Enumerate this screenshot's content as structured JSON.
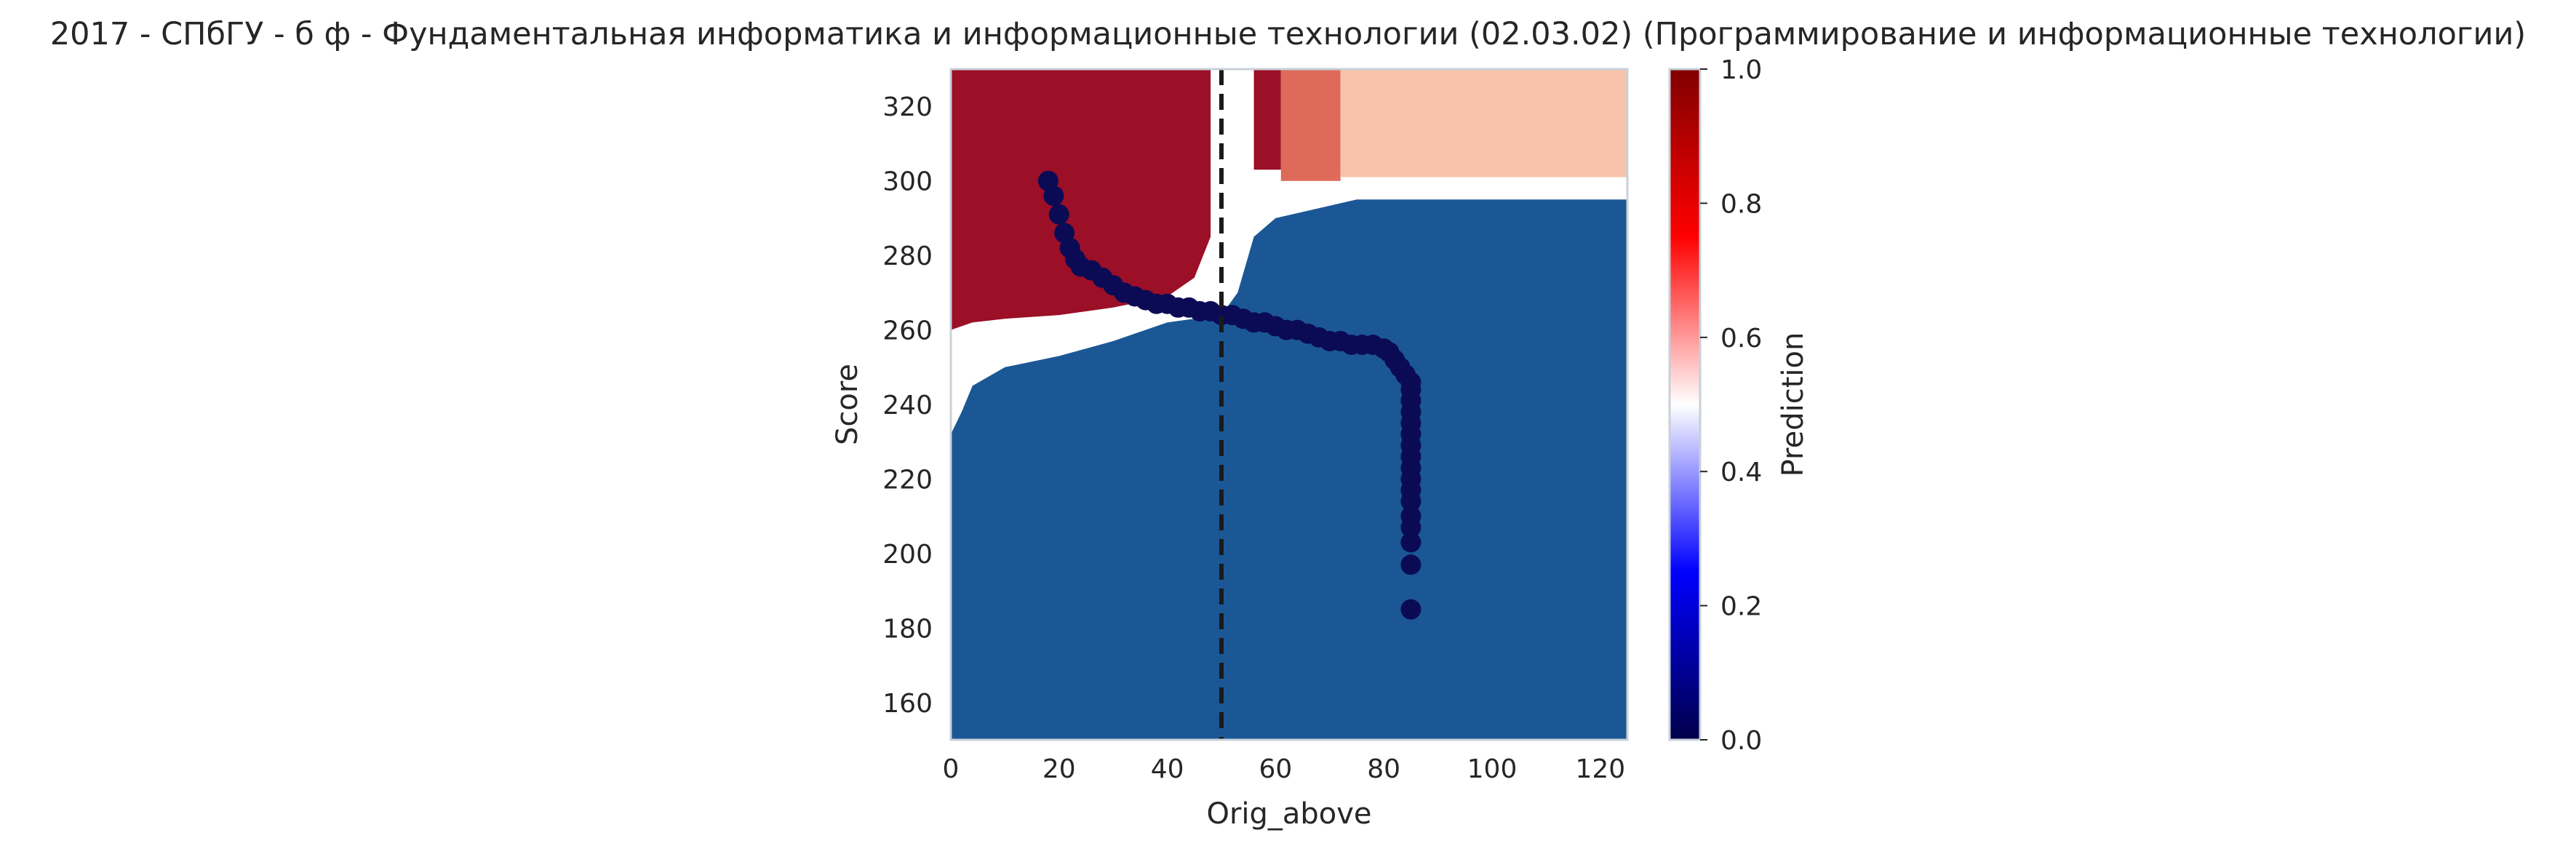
{
  "chart_data": {
    "type": "heatmap",
    "title": "2017 - СПбГУ - б ф - Фундаментальная информатика и информационные технологии (02.03.02) (Программирование и информационные технологии)",
    "xlabel": "Orig_above",
    "ylabel": "Score",
    "xlim": [
      0,
      125
    ],
    "ylim": [
      150,
      330
    ],
    "x_ticks": [
      0,
      20,
      40,
      60,
      80,
      100,
      120
    ],
    "y_ticks": [
      160,
      180,
      200,
      220,
      240,
      260,
      280,
      300,
      320
    ],
    "grid": false,
    "reference_line": {
      "x": 50,
      "style": "dashed",
      "color": "#1a1a1a"
    },
    "colorbar": {
      "label": "Prediction",
      "range": [
        0,
        1
      ],
      "ticks": [
        "0.0",
        "0.2",
        "0.4",
        "0.6",
        "0.8",
        "1.0"
      ],
      "colormap": "seismic"
    },
    "regions": [
      {
        "prediction": 0.05,
        "color": "#1b5795",
        "polygon": [
          [
            0,
            150
          ],
          [
            125,
            150
          ],
          [
            125,
            295
          ],
          [
            75,
            295
          ],
          [
            60,
            290
          ],
          [
            56,
            285
          ],
          [
            53,
            270
          ],
          [
            50,
            264
          ],
          [
            40,
            262
          ],
          [
            30,
            257
          ],
          [
            20,
            253
          ],
          [
            10,
            250
          ],
          [
            4,
            245
          ],
          [
            2,
            238
          ],
          [
            0,
            232
          ]
        ]
      },
      {
        "prediction": 0.98,
        "color": "#9b0f27",
        "polygon": [
          [
            0,
            330
          ],
          [
            48,
            330
          ],
          [
            48,
            285
          ],
          [
            45,
            274
          ],
          [
            40,
            269
          ],
          [
            30,
            266
          ],
          [
            20,
            264
          ],
          [
            10,
            263
          ],
          [
            4,
            262
          ],
          [
            0,
            260
          ]
        ]
      },
      {
        "prediction": 0.98,
        "color": "#9b0f27",
        "polygon": [
          [
            56,
            330
          ],
          [
            61,
            330
          ],
          [
            61,
            303
          ],
          [
            56,
            303
          ]
        ]
      },
      {
        "prediction": 0.75,
        "color": "#de6b5a",
        "polygon": [
          [
            61,
            330
          ],
          [
            72,
            330
          ],
          [
            72,
            300
          ],
          [
            61,
            300
          ]
        ]
      },
      {
        "prediction": 0.63,
        "color": "#f8c3aa",
        "polygon": [
          [
            72,
            330
          ],
          [
            125,
            330
          ],
          [
            125,
            301
          ],
          [
            72,
            301
          ]
        ]
      }
    ],
    "scatter": {
      "color": "#0b0b55",
      "points": [
        [
          18,
          300
        ],
        [
          19,
          296
        ],
        [
          20,
          291
        ],
        [
          21,
          286
        ],
        [
          22,
          282
        ],
        [
          23,
          279
        ],
        [
          24,
          277
        ],
        [
          26,
          276
        ],
        [
          28,
          274
        ],
        [
          30,
          272
        ],
        [
          32,
          270
        ],
        [
          34,
          269
        ],
        [
          36,
          268
        ],
        [
          38,
          267
        ],
        [
          40,
          267
        ],
        [
          42,
          266
        ],
        [
          44,
          266
        ],
        [
          46,
          265
        ],
        [
          48,
          265
        ],
        [
          50,
          264
        ],
        [
          52,
          264
        ],
        [
          54,
          263
        ],
        [
          56,
          262
        ],
        [
          58,
          262
        ],
        [
          60,
          261
        ],
        [
          62,
          260
        ],
        [
          64,
          260
        ],
        [
          66,
          259
        ],
        [
          68,
          258
        ],
        [
          70,
          257
        ],
        [
          72,
          257
        ],
        [
          74,
          256
        ],
        [
          76,
          256
        ],
        [
          78,
          256
        ],
        [
          80,
          255
        ],
        [
          81,
          254
        ],
        [
          82,
          252
        ],
        [
          83,
          250
        ],
        [
          84,
          248
        ],
        [
          85,
          246
        ],
        [
          85,
          244
        ],
        [
          85,
          241
        ],
        [
          85,
          238
        ],
        [
          85,
          235
        ],
        [
          85,
          232
        ],
        [
          85,
          229
        ],
        [
          85,
          226
        ],
        [
          85,
          223
        ],
        [
          85,
          220
        ],
        [
          85,
          217
        ],
        [
          85,
          214
        ],
        [
          85,
          210
        ],
        [
          85,
          207
        ],
        [
          85,
          203
        ],
        [
          85,
          197
        ],
        [
          85,
          185
        ]
      ]
    }
  }
}
